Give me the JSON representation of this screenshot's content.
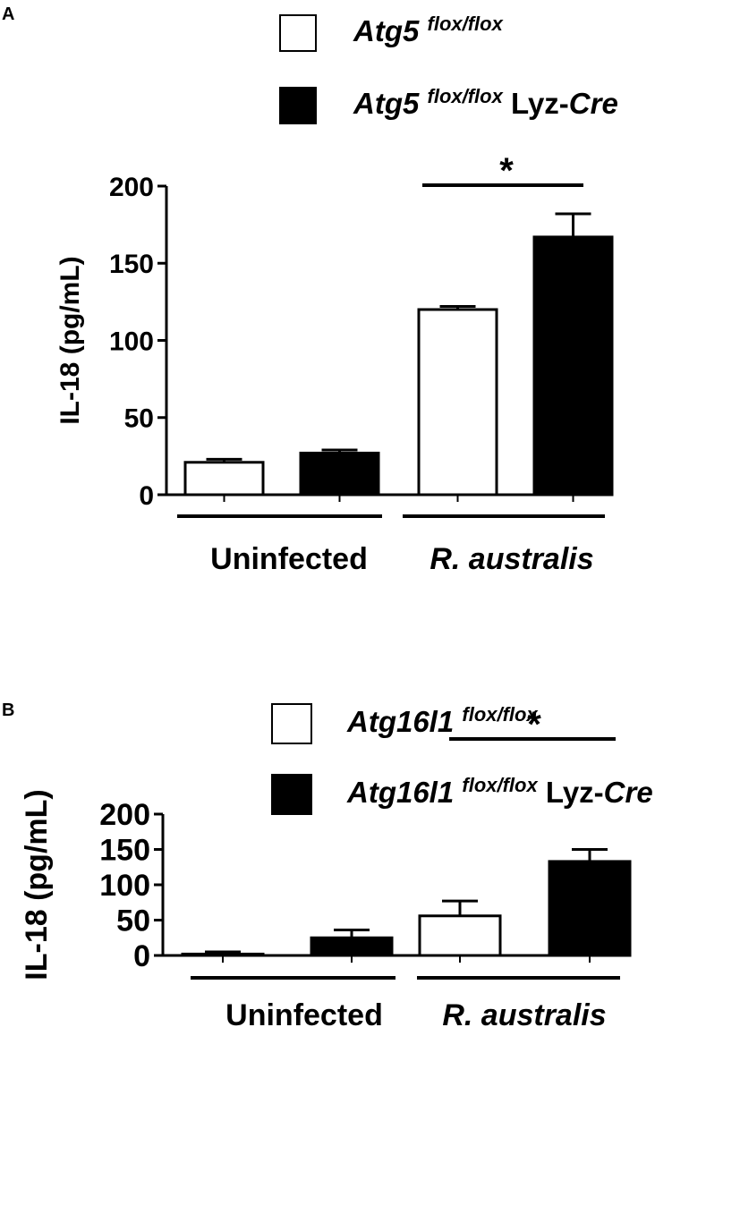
{
  "chart_data": [
    {
      "type": "bar",
      "panel": "A",
      "ylabel": "IL-18 (pg/mL)",
      "ylim": [
        0,
        200
      ],
      "yticks": [
        "0",
        "50",
        "100",
        "150",
        "200"
      ],
      "groups": [
        {
          "label": "Uninfected",
          "italic": false
        },
        {
          "label": "R. australis",
          "italic": true
        }
      ],
      "legend": [
        {
          "gene": "Atg5",
          "sup": "flox/flox",
          "suffix": "",
          "suffix_plain": "",
          "suffix_italic": "",
          "color": "#ffffff"
        },
        {
          "gene": "Atg5",
          "sup": "flox/flox",
          "suffix": "Lyz-Cre",
          "suffix_plain": "Lyz-",
          "suffix_italic": "Cre",
          "color": "#000000"
        }
      ],
      "series": [
        {
          "values": [
            21,
            120
          ],
          "errors": [
            2,
            2
          ],
          "fill": "#ffffff"
        },
        {
          "values": [
            27,
            167
          ],
          "errors": [
            2,
            15
          ],
          "fill": "#000000"
        }
      ],
      "significance": {
        "group": "R. australis",
        "marker": "*"
      }
    },
    {
      "type": "bar",
      "panel": "B",
      "ylabel": "IL-18 (pg/mL)",
      "ylim": [
        0,
        200
      ],
      "yticks": [
        "0",
        "50",
        "100",
        "150",
        "200"
      ],
      "groups": [
        {
          "label": "Uninfected",
          "italic": false
        },
        {
          "label": "R. australis",
          "italic": true
        }
      ],
      "legend": [
        {
          "gene": "Atg16l1",
          "sup": "flox/flox",
          "suffix": "",
          "suffix_plain": "",
          "suffix_italic": "",
          "color": "#ffffff"
        },
        {
          "gene": "Atg16l1",
          "sup": "flox/flox",
          "suffix": "Lyz-Cre",
          "suffix_plain": "Lyz-",
          "suffix_italic": "Cre",
          "color": "#000000"
        }
      ],
      "series": [
        {
          "values": [
            2,
            56
          ],
          "errors": [
            3,
            21
          ],
          "fill": "#ffffff"
        },
        {
          "values": [
            25,
            133
          ],
          "errors": [
            11,
            17
          ],
          "fill": "#000000"
        }
      ],
      "significance": {
        "group": "R. australis",
        "marker": "*"
      }
    }
  ]
}
